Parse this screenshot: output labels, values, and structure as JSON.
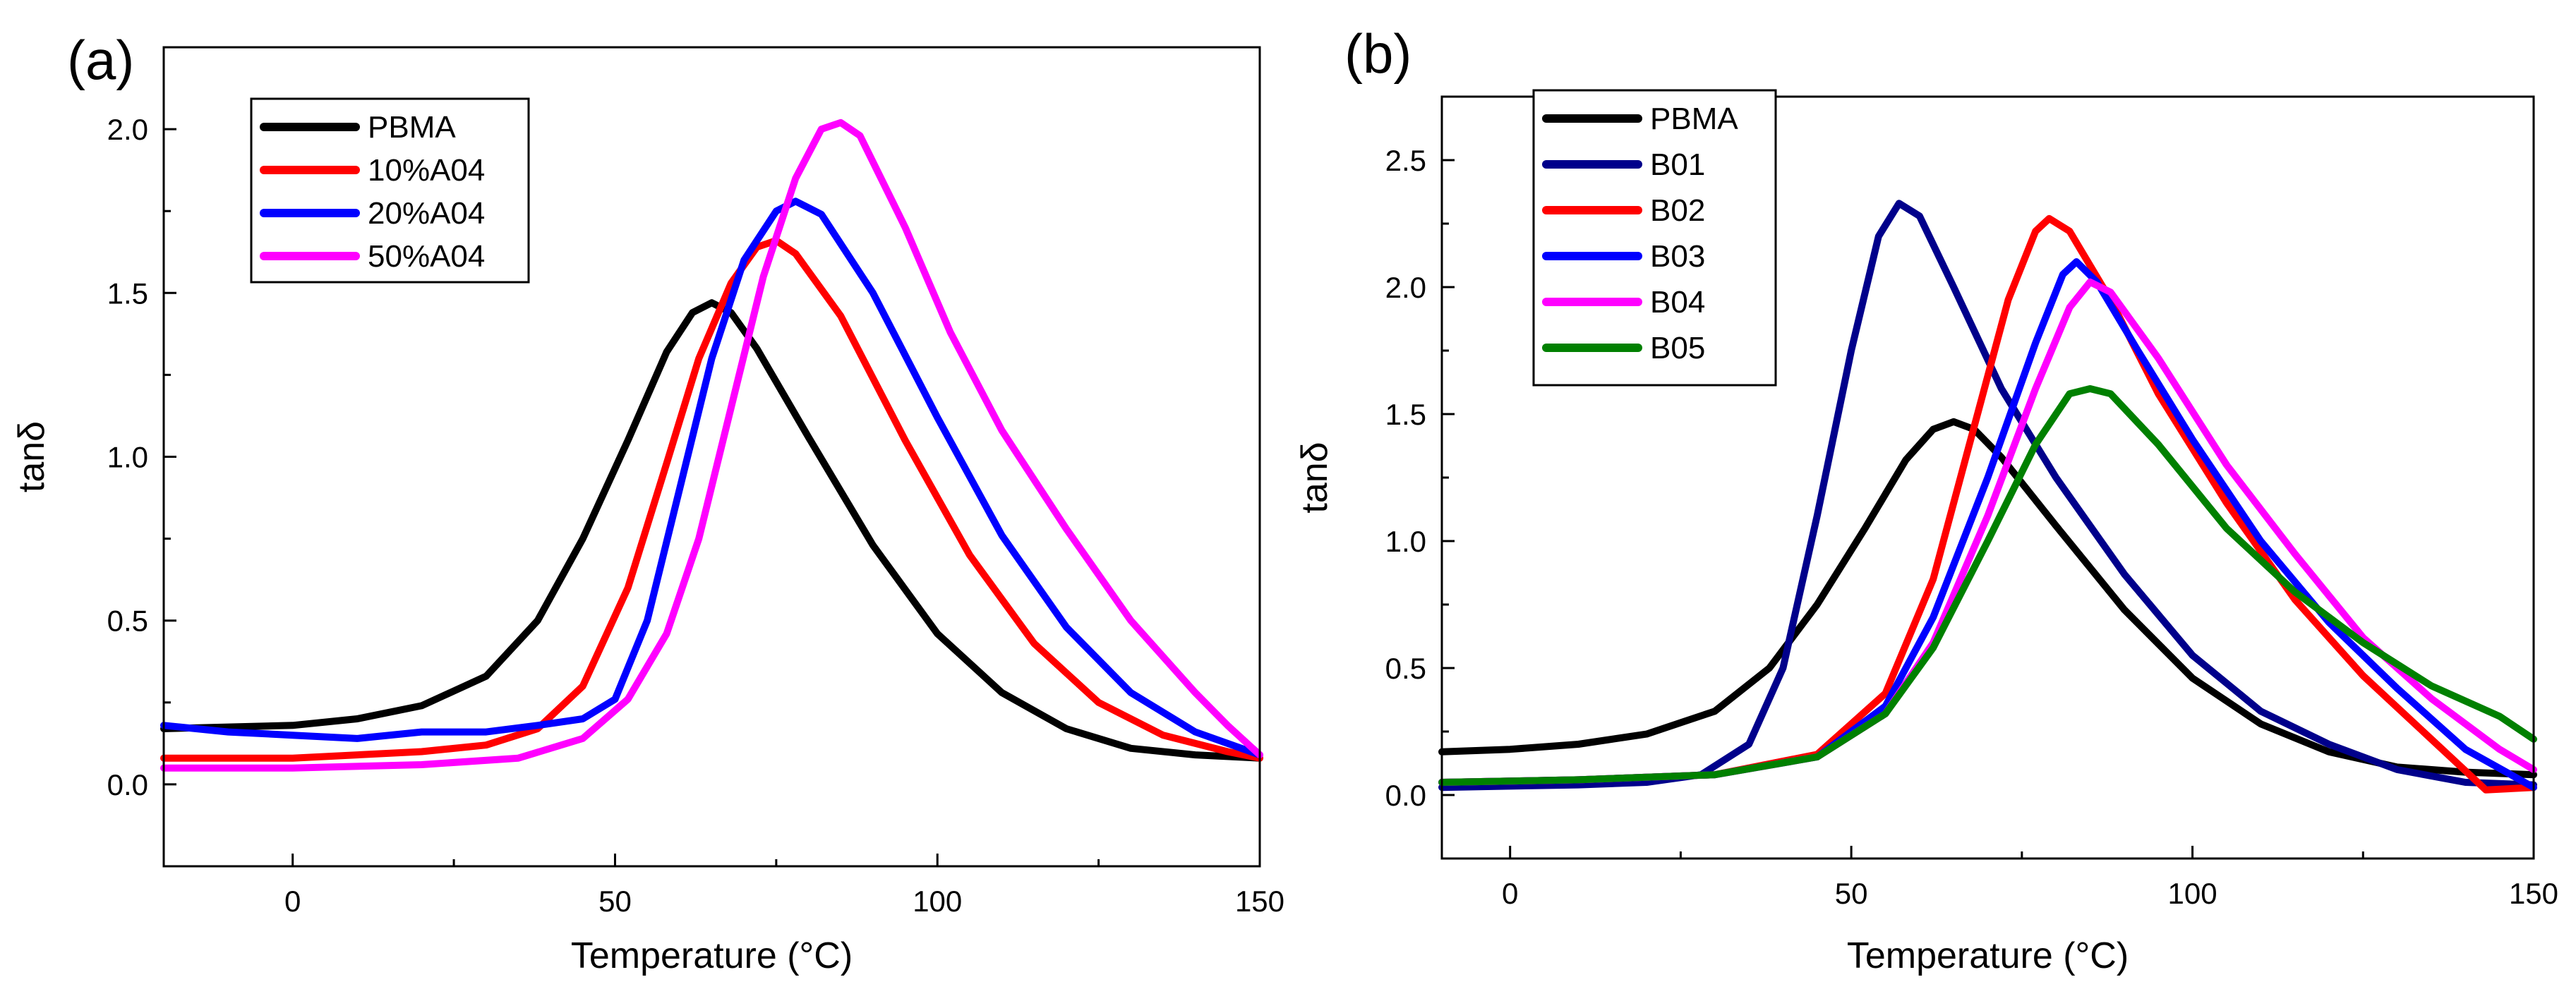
{
  "chart_data": [
    {
      "type": "line",
      "panel_label": "(a)",
      "xlabel": "Temperature (°C)",
      "ylabel": "tanδ",
      "xlim": [
        -20,
        150
      ],
      "ylim": [
        -0.25,
        2.25
      ],
      "xticks": [
        0,
        50,
        100,
        150
      ],
      "yticks": [
        0.0,
        0.5,
        1.0,
        1.5,
        2.0
      ],
      "xtick_labels": [
        "0",
        "50",
        "100",
        "150"
      ],
      "ytick_labels": [
        "0.0",
        "0.5",
        "1.0",
        "1.5",
        "2.0"
      ],
      "legend_position": "top-left",
      "series": [
        {
          "name": "PBMA",
          "color": "#000000",
          "points": [
            [
              -20,
              0.17
            ],
            [
              0,
              0.18
            ],
            [
              10,
              0.2
            ],
            [
              20,
              0.24
            ],
            [
              30,
              0.33
            ],
            [
              38,
              0.5
            ],
            [
              45,
              0.75
            ],
            [
              52,
              1.05
            ],
            [
              58,
              1.32
            ],
            [
              62,
              1.44
            ],
            [
              65,
              1.47
            ],
            [
              68,
              1.44
            ],
            [
              72,
              1.33
            ],
            [
              80,
              1.06
            ],
            [
              90,
              0.73
            ],
            [
              100,
              0.46
            ],
            [
              110,
              0.28
            ],
            [
              120,
              0.17
            ],
            [
              130,
              0.11
            ],
            [
              140,
              0.09
            ],
            [
              150,
              0.08
            ]
          ]
        },
        {
          "name": "10%A04",
          "color": "#ff0000",
          "points": [
            [
              -20,
              0.08
            ],
            [
              0,
              0.08
            ],
            [
              20,
              0.1
            ],
            [
              30,
              0.12
            ],
            [
              38,
              0.17
            ],
            [
              45,
              0.3
            ],
            [
              52,
              0.6
            ],
            [
              58,
              0.98
            ],
            [
              63,
              1.3
            ],
            [
              68,
              1.53
            ],
            [
              72,
              1.64
            ],
            [
              75,
              1.66
            ],
            [
              78,
              1.62
            ],
            [
              85,
              1.43
            ],
            [
              95,
              1.05
            ],
            [
              105,
              0.7
            ],
            [
              115,
              0.43
            ],
            [
              125,
              0.25
            ],
            [
              135,
              0.15
            ],
            [
              145,
              0.1
            ],
            [
              150,
              0.08
            ]
          ]
        },
        {
          "name": "20%A04",
          "color": "#0000ff",
          "points": [
            [
              -20,
              0.18
            ],
            [
              -10,
              0.16
            ],
            [
              0,
              0.15
            ],
            [
              10,
              0.14
            ],
            [
              20,
              0.16
            ],
            [
              30,
              0.16
            ],
            [
              38,
              0.18
            ],
            [
              45,
              0.2
            ],
            [
              50,
              0.26
            ],
            [
              55,
              0.5
            ],
            [
              60,
              0.9
            ],
            [
              65,
              1.3
            ],
            [
              70,
              1.6
            ],
            [
              75,
              1.75
            ],
            [
              78,
              1.78
            ],
            [
              82,
              1.74
            ],
            [
              90,
              1.5
            ],
            [
              100,
              1.12
            ],
            [
              110,
              0.76
            ],
            [
              120,
              0.48
            ],
            [
              130,
              0.28
            ],
            [
              140,
              0.16
            ],
            [
              150,
              0.09
            ]
          ]
        },
        {
          "name": "50%A04",
          "color": "#ff00ff",
          "points": [
            [
              -20,
              0.05
            ],
            [
              0,
              0.05
            ],
            [
              20,
              0.06
            ],
            [
              35,
              0.08
            ],
            [
              45,
              0.14
            ],
            [
              52,
              0.26
            ],
            [
              58,
              0.46
            ],
            [
              63,
              0.75
            ],
            [
              68,
              1.15
            ],
            [
              73,
              1.55
            ],
            [
              78,
              1.85
            ],
            [
              82,
              2.0
            ],
            [
              85,
              2.02
            ],
            [
              88,
              1.98
            ],
            [
              95,
              1.7
            ],
            [
              102,
              1.38
            ],
            [
              110,
              1.08
            ],
            [
              120,
              0.78
            ],
            [
              130,
              0.5
            ],
            [
              140,
              0.28
            ],
            [
              145,
              0.18
            ],
            [
              150,
              0.09
            ]
          ]
        }
      ]
    },
    {
      "type": "line",
      "panel_label": "(b)",
      "xlabel": "Temperature (°C)",
      "ylabel": "tanδ",
      "xlim": [
        -10,
        150
      ],
      "ylim": [
        -0.25,
        2.75
      ],
      "xticks": [
        0,
        50,
        100,
        150
      ],
      "yticks": [
        0.0,
        0.5,
        1.0,
        1.5,
        2.0,
        2.5
      ],
      "xtick_labels": [
        "0",
        "50",
        "100",
        "150"
      ],
      "ytick_labels": [
        "0.0",
        "0.5",
        "1.0",
        "1.5",
        "2.0",
        "2.5"
      ],
      "legend_position": "top-left",
      "series": [
        {
          "name": "PBMA",
          "color": "#000000",
          "points": [
            [
              -10,
              0.17
            ],
            [
              0,
              0.18
            ],
            [
              10,
              0.2
            ],
            [
              20,
              0.24
            ],
            [
              30,
              0.33
            ],
            [
              38,
              0.5
            ],
            [
              45,
              0.75
            ],
            [
              52,
              1.05
            ],
            [
              58,
              1.32
            ],
            [
              62,
              1.44
            ],
            [
              65,
              1.47
            ],
            [
              68,
              1.44
            ],
            [
              72,
              1.33
            ],
            [
              80,
              1.06
            ],
            [
              90,
              0.73
            ],
            [
              100,
              0.46
            ],
            [
              110,
              0.28
            ],
            [
              120,
              0.17
            ],
            [
              130,
              0.11
            ],
            [
              140,
              0.09
            ],
            [
              150,
              0.08
            ]
          ]
        },
        {
          "name": "B01",
          "color": "#00008b",
          "points": [
            [
              -10,
              0.03
            ],
            [
              10,
              0.04
            ],
            [
              20,
              0.05
            ],
            [
              28,
              0.08
            ],
            [
              35,
              0.2
            ],
            [
              40,
              0.5
            ],
            [
              45,
              1.1
            ],
            [
              50,
              1.75
            ],
            [
              54,
              2.2
            ],
            [
              57,
              2.33
            ],
            [
              60,
              2.28
            ],
            [
              65,
              2.0
            ],
            [
              72,
              1.6
            ],
            [
              80,
              1.25
            ],
            [
              90,
              0.87
            ],
            [
              100,
              0.55
            ],
            [
              110,
              0.33
            ],
            [
              120,
              0.2
            ],
            [
              130,
              0.1
            ],
            [
              140,
              0.05
            ],
            [
              150,
              0.04
            ]
          ]
        },
        {
          "name": "B02",
          "color": "#ff0000",
          "points": [
            [
              -10,
              0.05
            ],
            [
              10,
              0.06
            ],
            [
              30,
              0.08
            ],
            [
              45,
              0.16
            ],
            [
              55,
              0.4
            ],
            [
              62,
              0.85
            ],
            [
              68,
              1.45
            ],
            [
              73,
              1.95
            ],
            [
              77,
              2.22
            ],
            [
              79,
              2.27
            ],
            [
              82,
              2.22
            ],
            [
              88,
              1.95
            ],
            [
              95,
              1.58
            ],
            [
              105,
              1.15
            ],
            [
              115,
              0.77
            ],
            [
              125,
              0.47
            ],
            [
              135,
              0.22
            ],
            [
              143,
              0.02
            ],
            [
              150,
              0.03
            ]
          ]
        },
        {
          "name": "B03",
          "color": "#0000ff",
          "points": [
            [
              -10,
              0.05
            ],
            [
              10,
              0.06
            ],
            [
              30,
              0.08
            ],
            [
              45,
              0.15
            ],
            [
              55,
              0.35
            ],
            [
              62,
              0.7
            ],
            [
              70,
              1.25
            ],
            [
              77,
              1.78
            ],
            [
              81,
              2.05
            ],
            [
              83,
              2.1
            ],
            [
              86,
              2.02
            ],
            [
              92,
              1.75
            ],
            [
              100,
              1.4
            ],
            [
              110,
              1.0
            ],
            [
              120,
              0.68
            ],
            [
              130,
              0.42
            ],
            [
              140,
              0.18
            ],
            [
              150,
              0.03
            ]
          ]
        },
        {
          "name": "B04",
          "color": "#ff00ff",
          "points": [
            [
              -10,
              0.05
            ],
            [
              10,
              0.06
            ],
            [
              30,
              0.08
            ],
            [
              45,
              0.15
            ],
            [
              55,
              0.32
            ],
            [
              62,
              0.6
            ],
            [
              70,
              1.1
            ],
            [
              77,
              1.6
            ],
            [
              82,
              1.92
            ],
            [
              85,
              2.02
            ],
            [
              88,
              1.98
            ],
            [
              95,
              1.72
            ],
            [
              105,
              1.3
            ],
            [
              115,
              0.95
            ],
            [
              125,
              0.62
            ],
            [
              135,
              0.38
            ],
            [
              145,
              0.18
            ],
            [
              150,
              0.1
            ]
          ]
        },
        {
          "name": "B05",
          "color": "#008000",
          "points": [
            [
              -10,
              0.05
            ],
            [
              10,
              0.06
            ],
            [
              30,
              0.08
            ],
            [
              45,
              0.15
            ],
            [
              55,
              0.32
            ],
            [
              62,
              0.58
            ],
            [
              70,
              1.0
            ],
            [
              77,
              1.38
            ],
            [
              82,
              1.58
            ],
            [
              85,
              1.6
            ],
            [
              88,
              1.58
            ],
            [
              95,
              1.38
            ],
            [
              105,
              1.05
            ],
            [
              115,
              0.8
            ],
            [
              125,
              0.6
            ],
            [
              135,
              0.43
            ],
            [
              145,
              0.31
            ],
            [
              150,
              0.22
            ]
          ]
        }
      ]
    }
  ]
}
